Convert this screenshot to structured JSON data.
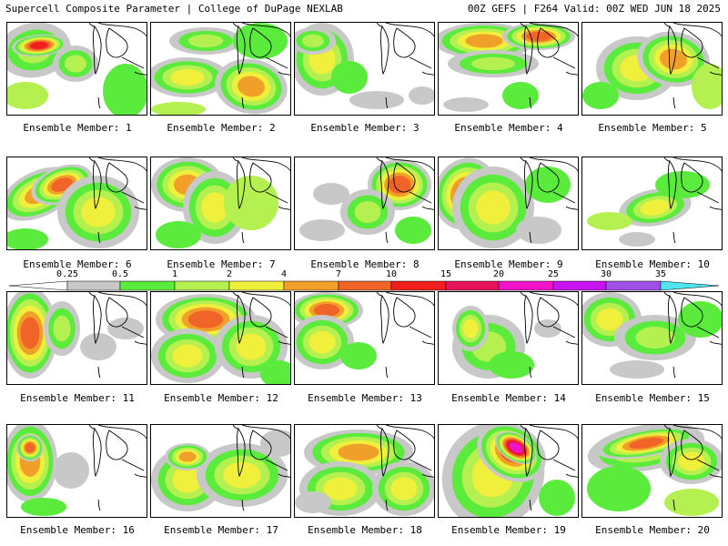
{
  "header": {
    "title": "Supercell Composite Parameter | College of DuPage NEXLAB",
    "run": "00Z GEFS | F264 Valid: 00Z WED JUN 18 2025"
  },
  "colorbar": {
    "labels": [
      "0.25",
      "0.5",
      "1",
      "2",
      "4",
      "7",
      "10",
      "15",
      "20",
      "25",
      "30",
      "35"
    ],
    "colors": [
      "#c8c8c8",
      "#5aeb3c",
      "#b4f050",
      "#f0f03c",
      "#f0a028",
      "#f06428",
      "#f01e1e",
      "#e6145a",
      "#f014c8",
      "#c814f0",
      "#a050e6",
      "#50e6f0"
    ]
  },
  "members": [
    {
      "label": "Ensemble Member: 1"
    },
    {
      "label": "Ensemble Member: 2"
    },
    {
      "label": "Ensemble Member: 3"
    },
    {
      "label": "Ensemble Member: 4"
    },
    {
      "label": "Ensemble Member: 5"
    },
    {
      "label": "Ensemble Member: 6"
    },
    {
      "label": "Ensemble Member: 7"
    },
    {
      "label": "Ensemble Member: 8"
    },
    {
      "label": "Ensemble Member: 9"
    },
    {
      "label": "Ensemble Member: 10"
    },
    {
      "label": "Ensemble Member: 11"
    },
    {
      "label": "Ensemble Member: 12"
    },
    {
      "label": "Ensemble Member: 13"
    },
    {
      "label": "Ensemble Member: 14"
    },
    {
      "label": "Ensemble Member: 15"
    },
    {
      "label": "Ensemble Member: 16"
    },
    {
      "label": "Ensemble Member: 17"
    },
    {
      "label": "Ensemble Member: 18"
    },
    {
      "label": "Ensemble Member: 19"
    },
    {
      "label": "Ensemble Member: 20"
    }
  ]
}
